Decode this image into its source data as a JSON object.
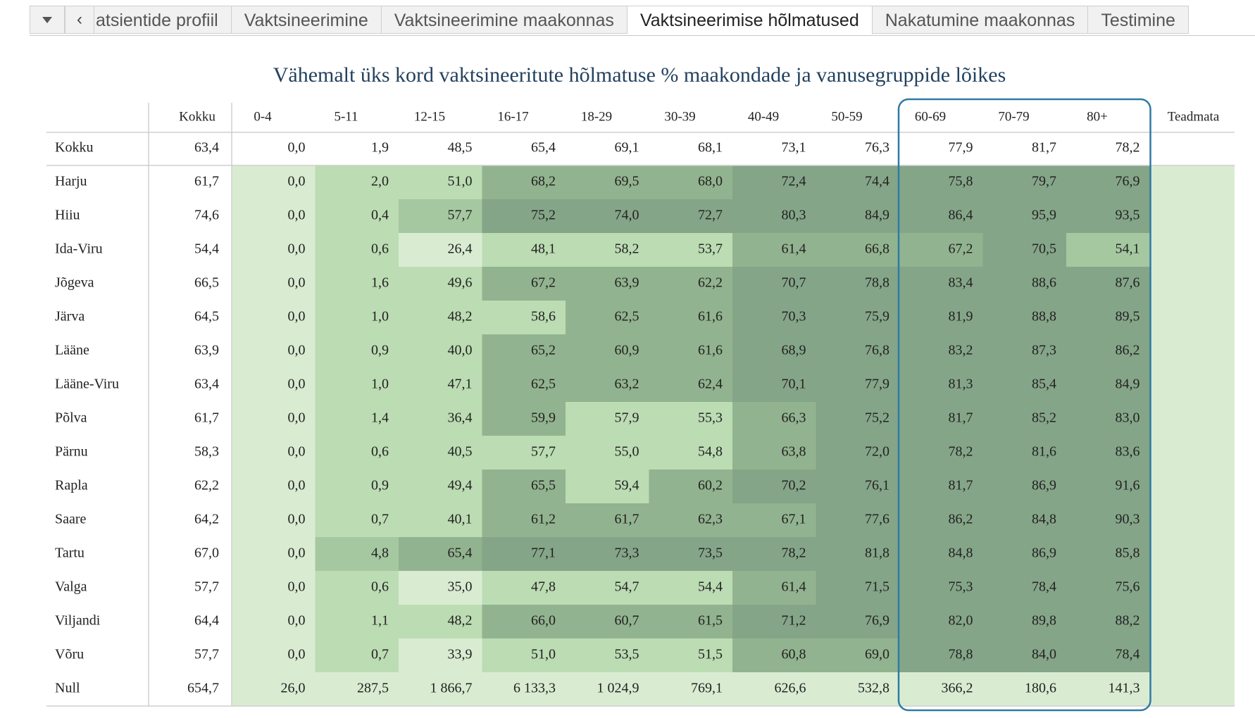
{
  "tabs": {
    "items": [
      "atsientide profiil",
      "Vaktsineerimine",
      "Vaktsineerimine maakonnas",
      "Vaktsineerimise hõlmatused",
      "Nakatumine maakonnas",
      "Testimine"
    ],
    "active_index": 3
  },
  "icons": {
    "menu": "caret-down-icon",
    "prev": "chevron-left-icon"
  },
  "chart_data": {
    "type": "heatmap",
    "title": "Vähemalt üks kord vaktsineeritute hõlmatuse % maakondade ja vanusegruppide lõikes",
    "columns": [
      "Kokku",
      "0-4",
      "5-11",
      "12-15",
      "16-17",
      "18-29",
      "30-39",
      "40-49",
      "50-59",
      "60-69",
      "70-79",
      "80+",
      "Teadmata"
    ],
    "total_row": {
      "label": "Kokku",
      "values": [
        "63,4",
        "0,0",
        "1,9",
        "48,5",
        "65,4",
        "69,1",
        "68,1",
        "73,1",
        "76,3",
        "77,9",
        "81,7",
        "78,2",
        ""
      ]
    },
    "rows": [
      {
        "label": "Harju",
        "values": [
          "61,7",
          "0,0",
          "2,0",
          "51,0",
          "68,2",
          "69,5",
          "68,0",
          "72,4",
          "74,4",
          "75,8",
          "79,7",
          "76,9",
          ""
        ]
      },
      {
        "label": "Hiiu",
        "values": [
          "74,6",
          "0,0",
          "0,4",
          "57,7",
          "75,2",
          "74,0",
          "72,7",
          "80,3",
          "84,9",
          "86,4",
          "95,9",
          "93,5",
          ""
        ]
      },
      {
        "label": "Ida-Viru",
        "values": [
          "54,4",
          "0,0",
          "0,6",
          "26,4",
          "48,1",
          "58,2",
          "53,7",
          "61,4",
          "66,8",
          "67,2",
          "70,5",
          "54,1",
          ""
        ]
      },
      {
        "label": "Jõgeva",
        "values": [
          "66,5",
          "0,0",
          "1,6",
          "49,6",
          "67,2",
          "63,9",
          "62,2",
          "70,7",
          "78,8",
          "83,4",
          "88,6",
          "87,6",
          ""
        ]
      },
      {
        "label": "Järva",
        "values": [
          "64,5",
          "0,0",
          "1,0",
          "48,2",
          "58,6",
          "62,5",
          "61,6",
          "70,3",
          "75,9",
          "81,9",
          "88,8",
          "89,5",
          ""
        ]
      },
      {
        "label": "Lääne",
        "values": [
          "63,9",
          "0,0",
          "0,9",
          "40,0",
          "65,2",
          "60,9",
          "61,6",
          "68,9",
          "76,8",
          "83,2",
          "87,3",
          "86,2",
          ""
        ]
      },
      {
        "label": "Lääne-Viru",
        "values": [
          "63,4",
          "0,0",
          "1,0",
          "47,1",
          "62,5",
          "63,2",
          "62,4",
          "70,1",
          "77,9",
          "81,3",
          "85,4",
          "84,9",
          ""
        ]
      },
      {
        "label": "Põlva",
        "values": [
          "61,7",
          "0,0",
          "1,4",
          "36,4",
          "59,9",
          "57,9",
          "55,3",
          "66,3",
          "75,2",
          "81,7",
          "85,2",
          "83,0",
          ""
        ]
      },
      {
        "label": "Pärnu",
        "values": [
          "58,3",
          "0,0",
          "0,6",
          "40,5",
          "57,7",
          "55,0",
          "54,8",
          "63,8",
          "72,0",
          "78,2",
          "81,6",
          "83,6",
          ""
        ]
      },
      {
        "label": "Rapla",
        "values": [
          "62,2",
          "0,0",
          "0,9",
          "49,4",
          "65,5",
          "59,4",
          "60,2",
          "70,2",
          "76,1",
          "81,7",
          "86,9",
          "91,6",
          ""
        ]
      },
      {
        "label": "Saare",
        "values": [
          "64,2",
          "0,0",
          "0,7",
          "40,1",
          "61,2",
          "61,7",
          "62,3",
          "67,1",
          "77,6",
          "86,2",
          "84,8",
          "90,3",
          ""
        ]
      },
      {
        "label": "Tartu",
        "values": [
          "67,0",
          "0,0",
          "4,8",
          "65,4",
          "77,1",
          "73,3",
          "73,5",
          "78,2",
          "81,8",
          "84,8",
          "86,9",
          "85,8",
          ""
        ]
      },
      {
        "label": "Valga",
        "values": [
          "57,7",
          "0,0",
          "0,6",
          "35,0",
          "47,8",
          "54,7",
          "54,4",
          "61,4",
          "71,5",
          "75,3",
          "78,4",
          "75,6",
          ""
        ]
      },
      {
        "label": "Viljandi",
        "values": [
          "64,4",
          "0,0",
          "1,1",
          "48,2",
          "66,0",
          "60,7",
          "61,5",
          "71,2",
          "76,9",
          "82,0",
          "89,8",
          "88,2",
          ""
        ]
      },
      {
        "label": "Võru",
        "values": [
          "57,7",
          "0,0",
          "0,7",
          "33,9",
          "51,0",
          "53,5",
          "51,5",
          "60,8",
          "69,0",
          "78,8",
          "84,0",
          "78,4",
          ""
        ]
      },
      {
        "label": "Null",
        "values": [
          "654,7",
          "26,0",
          "287,5",
          "1 866,7",
          "6 133,3",
          "1 024,9",
          "769,1",
          "626,6",
          "532,8",
          "366,2",
          "180,6",
          "141,3",
          ""
        ]
      }
    ],
    "color_scale": [
      "#d9ecd2",
      "#bcdcb3",
      "#a5c8a0",
      "#92b38f",
      "#85a588"
    ],
    "color_levels": {
      "Harju": [
        1,
        1,
        3,
        3,
        3,
        4,
        4,
        4,
        4,
        4
      ],
      "Hiiu": [
        1,
        2,
        4,
        4,
        4,
        4,
        4,
        4,
        4,
        4
      ],
      "Ida-Viru": [
        1,
        0,
        1,
        1,
        1,
        3,
        3,
        3,
        4,
        2
      ],
      "Jõgeva": [
        1,
        1,
        3,
        3,
        3,
        4,
        4,
        4,
        4,
        4
      ],
      "Järva": [
        1,
        1,
        1,
        3,
        3,
        4,
        4,
        4,
        4,
        4
      ],
      "Lääne": [
        1,
        1,
        3,
        3,
        3,
        4,
        4,
        4,
        4,
        4
      ],
      "Lääne-Viru": [
        1,
        1,
        3,
        3,
        3,
        4,
        4,
        4,
        4,
        4
      ],
      "Põlva": [
        1,
        1,
        3,
        1,
        1,
        3,
        4,
        4,
        4,
        4
      ],
      "Pärnu": [
        1,
        1,
        1,
        1,
        1,
        3,
        4,
        4,
        4,
        4
      ],
      "Rapla": [
        1,
        1,
        3,
        1,
        3,
        4,
        4,
        4,
        4,
        4
      ],
      "Saare": [
        1,
        1,
        3,
        3,
        3,
        3,
        4,
        4,
        4,
        4
      ],
      "Tartu": [
        2,
        3,
        4,
        4,
        4,
        4,
        4,
        4,
        4,
        4
      ],
      "Valga": [
        1,
        0,
        1,
        1,
        1,
        3,
        4,
        4,
        4,
        4
      ],
      "Viljandi": [
        1,
        1,
        3,
        3,
        3,
        4,
        4,
        4,
        4,
        4
      ],
      "Võru": [
        1,
        0,
        1,
        1,
        1,
        3,
        3,
        4,
        4,
        4
      ]
    },
    "highlighted_columns": [
      "60-69",
      "70-79",
      "80+"
    ],
    "highlight_color": "#2f7aa6"
  }
}
